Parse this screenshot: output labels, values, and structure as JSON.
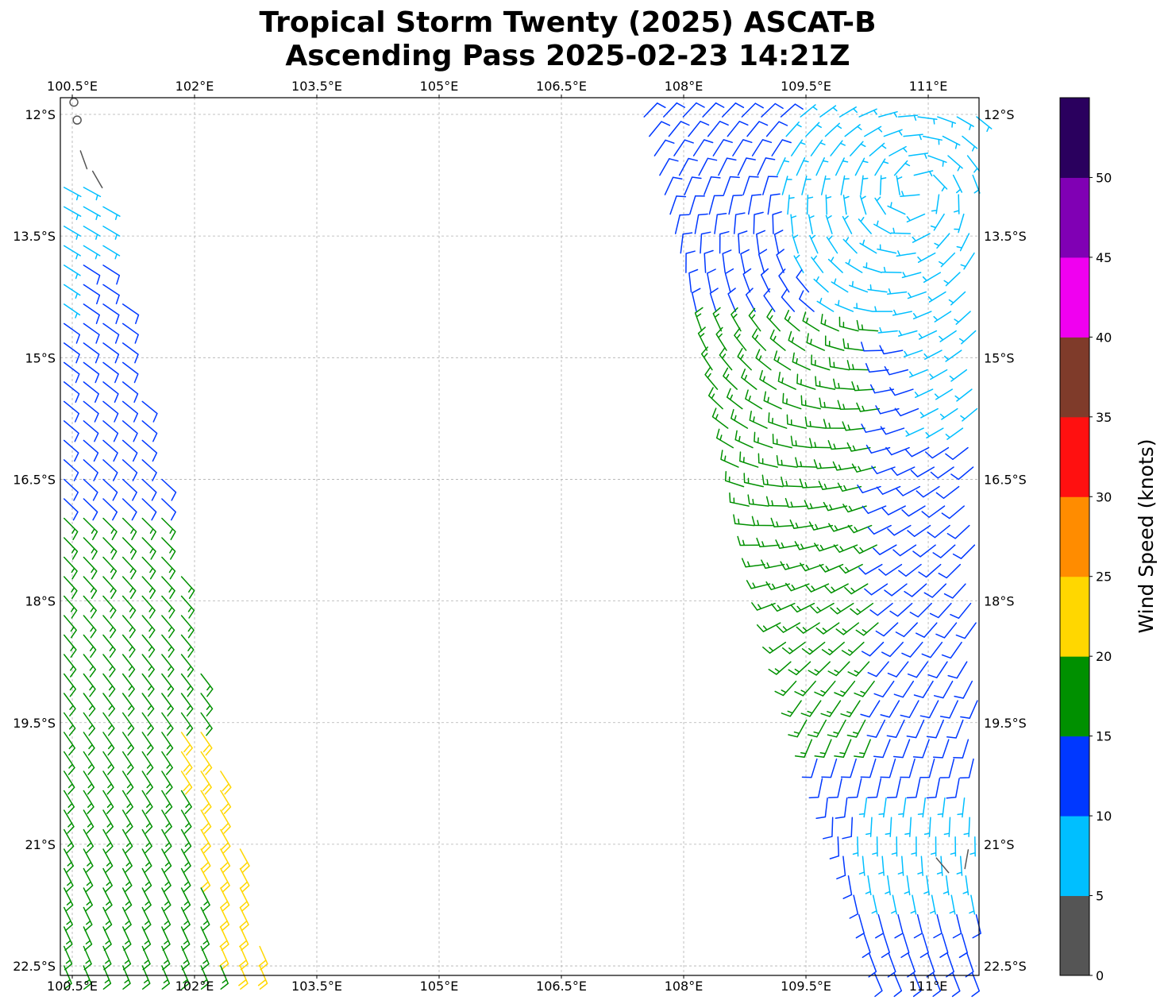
{
  "chart_data": {
    "type": "wind-barb-map",
    "title_line1": "Tropical Storm Twenty (2025) ASCAT-B",
    "title_line2": "Ascending Pass 2025-02-23 14:21Z",
    "xlim": [
      100.35,
      111.63
    ],
    "ylim": [
      -22.62,
      -11.79
    ],
    "grid": true,
    "lon_ticks": [
      100.5,
      102,
      103.5,
      105,
      106.5,
      108,
      109.5,
      111
    ],
    "lon_tick_labels": [
      "100.5°E",
      "102°E",
      "103.5°E",
      "105°E",
      "106.5°E",
      "108°E",
      "109.5°E",
      "111°E"
    ],
    "lat_ticks": [
      -12,
      -13.5,
      -15,
      -16.5,
      -18,
      -19.5,
      -21,
      -22.5
    ],
    "lat_tick_labels": [
      "12°S",
      "13.5°S",
      "15°S",
      "16.5°S",
      "18°S",
      "19.5°S",
      "21°S",
      "22.5°S"
    ],
    "colorbar": {
      "label": "Wind Speed (knots)",
      "range": [
        0,
        55
      ],
      "ticks": [
        0,
        5,
        10,
        15,
        20,
        25,
        30,
        35,
        40,
        45,
        50
      ],
      "tick_labels": [
        "0",
        "5",
        "10",
        "15",
        "20",
        "25",
        "30",
        "35",
        "40",
        "45",
        "50"
      ],
      "colors": [
        "#555555",
        "#00bfff",
        "#0038ff",
        "#009000",
        "#ffd700",
        "#ff8c00",
        "#ff1010",
        "#7f3b2a",
        "#f000f0",
        "#8000b4",
        "#2a005e"
      ]
    },
    "swaths": [
      {
        "name": "west",
        "lat_top": -12.9,
        "lat_bottom": -22.62,
        "lon_left_top": 100.35,
        "lon_left_bottom": 100.35,
        "lon_right_top": 100.85,
        "lon_right_bottom": 102.9
      },
      {
        "name": "east",
        "lat_top": -11.79,
        "lat_bottom": -22.62,
        "lon_left_top": 107.4,
        "lon_left_bottom": 110.3,
        "lon_right_top": 111.63,
        "lon_right_bottom": 111.63
      }
    ],
    "storm_center": {
      "lon": 110.9,
      "lat": -12.9
    },
    "calm_points": [
      {
        "lon": 100.52,
        "lat": -11.85
      },
      {
        "lon": 100.56,
        "lat": -12.07
      }
    ],
    "low_wind_barbs": [
      {
        "lon": 100.6,
        "lat": -12.45,
        "speed": 3,
        "dir_from": 160
      },
      {
        "lon": 100.75,
        "lat": -12.7,
        "speed": 4,
        "dir_from": 150
      },
      {
        "lon": 111.25,
        "lat": -21.35,
        "speed": 4,
        "dir_from": 320
      },
      {
        "lon": 111.45,
        "lat": -21.3,
        "speed": 3,
        "dir_from": 10
      }
    ]
  }
}
